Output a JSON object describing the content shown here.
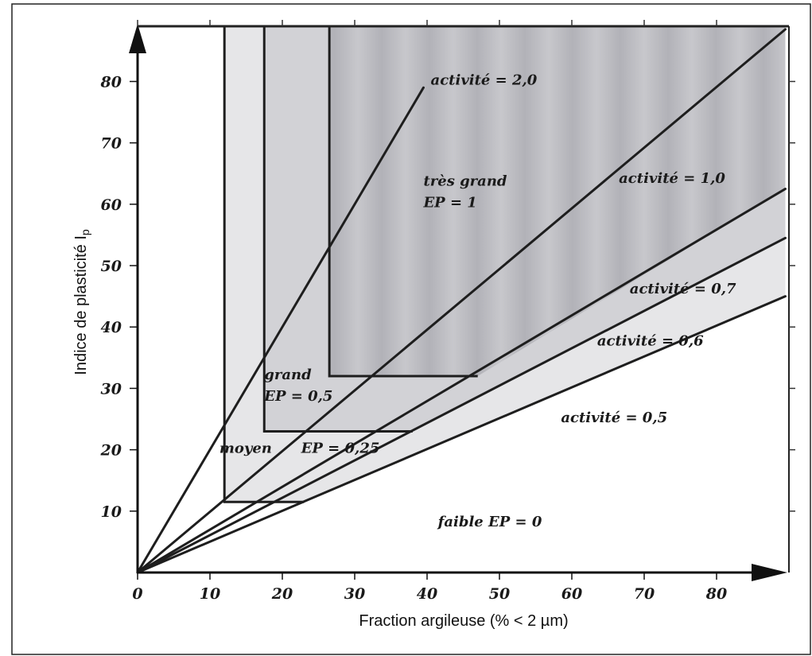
{
  "chart_data": {
    "type": "line",
    "xlabel": "Fraction argileuse (% < 2 µm)",
    "ylabel": "Indice de plasticité Ip",
    "xlim": [
      0,
      90
    ],
    "ylim": [
      0,
      89
    ],
    "x_ticks": [
      0,
      10,
      20,
      30,
      40,
      50,
      60,
      70,
      80
    ],
    "y_ticks": [
      10,
      20,
      30,
      40,
      50,
      60,
      70,
      80
    ],
    "series": [
      {
        "name": "activité = 2,0",
        "activity": 2.0,
        "x": [
          0,
          39.5
        ],
        "y": [
          0,
          79
        ]
      },
      {
        "name": "activité = 1,0",
        "activity": 1.0,
        "x": [
          0,
          89.5
        ],
        "y": [
          0,
          88.5
        ]
      },
      {
        "name": "activité = 0,7",
        "activity": 0.7,
        "x": [
          0,
          89.5
        ],
        "y": [
          0,
          62.5
        ]
      },
      {
        "name": "activité = 0,6",
        "activity": 0.6,
        "x": [
          0,
          89.5
        ],
        "y": [
          0,
          54.5
        ]
      },
      {
        "name": "activité = 0,5",
        "activity": 0.5,
        "x": [
          0,
          89.5
        ],
        "y": [
          0,
          45
        ]
      }
    ],
    "regions": [
      {
        "label": "moyen EP = 0,25",
        "boundary": [
          [
            12,
            89
          ],
          [
            12,
            11.5
          ],
          [
            23,
            11.5
          ],
          [
            89.5,
            45
          ],
          [
            89.5,
            89
          ]
        ],
        "color": "#e6e6e8"
      },
      {
        "label": "grand EP = 0,5",
        "boundary": [
          [
            17.5,
            89
          ],
          [
            17.5,
            23
          ],
          [
            38,
            23
          ],
          [
            89.5,
            54.5
          ],
          [
            89.5,
            89
          ]
        ],
        "color": "#d2d2d6"
      },
      {
        "label": "très grand EP = 1",
        "boundary": [
          [
            26.5,
            89
          ],
          [
            26.5,
            32
          ],
          [
            47,
            32
          ],
          [
            89.5,
            62.5
          ],
          [
            89.5,
            89
          ]
        ],
        "color": "#b2b2b8"
      }
    ],
    "annotations": [
      {
        "text": "activité = 2,0",
        "x": 40.5,
        "y": 79.5
      },
      {
        "text": "très grand",
        "x": 39.5,
        "y": 63
      },
      {
        "text": "EP = 1",
        "x": 39.5,
        "y": 59.5
      },
      {
        "text": "activité = 1,0",
        "x": 66.5,
        "y": 63.5
      },
      {
        "text": "activité = 0,7",
        "x": 68,
        "y": 45.5
      },
      {
        "text": "activité = 0,6",
        "x": 63.5,
        "y": 37
      },
      {
        "text": "grand",
        "x": 17.5,
        "y": 31.5
      },
      {
        "text": "EP = 0,5",
        "x": 17.5,
        "y": 28
      },
      {
        "text": "activité = 0,5",
        "x": 58.5,
        "y": 24.5
      },
      {
        "text": "moyen",
        "x": 11.3,
        "y": 19.5
      },
      {
        "text": "EP = 0,25",
        "x": 22.6,
        "y": 19.5
      },
      {
        "text": "faible EP = 0",
        "x": 41.5,
        "y": 7.5
      }
    ],
    "grid": false,
    "legend": "none"
  },
  "colors": {
    "line": "#1e1e1e",
    "moyen": "#e6e6e8",
    "grand": "#d2d2d6",
    "tres_grand": "#b2b2b8",
    "frame": "#222222"
  }
}
